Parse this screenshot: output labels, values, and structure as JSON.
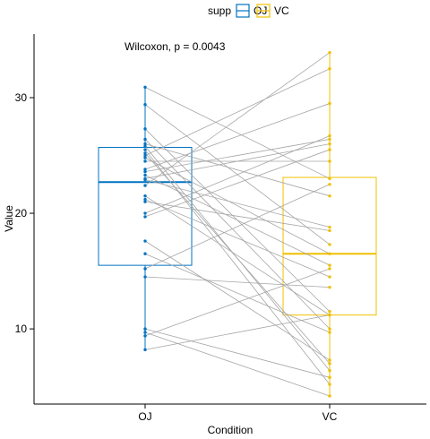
{
  "chart_data": {
    "type": "boxplot",
    "title": "",
    "xlabel": "Condition",
    "ylabel": "Value",
    "ylim": [
      3.5,
      35.5
    ],
    "yticks": [
      10,
      20,
      30
    ],
    "categories": [
      "OJ",
      "VC"
    ],
    "legend": {
      "title": "supp",
      "position": "top",
      "entries": [
        {
          "name": "OJ",
          "color": "#0073C2"
        },
        {
          "name": "VC",
          "color": "#EFC000"
        }
      ]
    },
    "annotation": "Wilcoxon, p = 0.0043",
    "boxes": [
      {
        "group": "OJ",
        "q1": 15.5,
        "median": 22.7,
        "q3": 25.7,
        "min": 8.2,
        "max": 30.9,
        "color": "#0073C2"
      },
      {
        "group": "VC",
        "q1": 11.2,
        "median": 16.5,
        "q3": 23.1,
        "min": 4.2,
        "max": 33.9,
        "color": "#EFC000"
      }
    ],
    "pairs": [
      [
        30.9,
        23.0
      ],
      [
        29.4,
        17.3
      ],
      [
        27.3,
        11.5
      ],
      [
        26.4,
        10.0
      ],
      [
        25.8,
        6.4
      ],
      [
        25.5,
        5.2
      ],
      [
        25.2,
        7.0
      ],
      [
        24.8,
        16.5
      ],
      [
        24.5,
        24.5
      ],
      [
        23.6,
        26.4
      ],
      [
        23.3,
        15.5
      ],
      [
        22.9,
        18.8
      ],
      [
        22.4,
        33.9
      ],
      [
        21.5,
        11.2
      ],
      [
        21.2,
        14.5
      ],
      [
        20.0,
        26.7
      ],
      [
        19.7,
        25.5
      ],
      [
        17.6,
        7.3
      ],
      [
        16.5,
        9.7
      ],
      [
        15.2,
        22.5
      ],
      [
        14.5,
        13.6
      ],
      [
        10.0,
        5.8
      ],
      [
        9.7,
        4.2
      ],
      [
        9.4,
        15.2
      ],
      [
        8.2,
        11.2
      ],
      [
        26.0,
        21.5
      ],
      [
        23.8,
        29.5
      ],
      [
        25.0,
        32.5
      ],
      [
        21.0,
        18.5
      ],
      [
        23.0,
        26.0
      ]
    ]
  }
}
